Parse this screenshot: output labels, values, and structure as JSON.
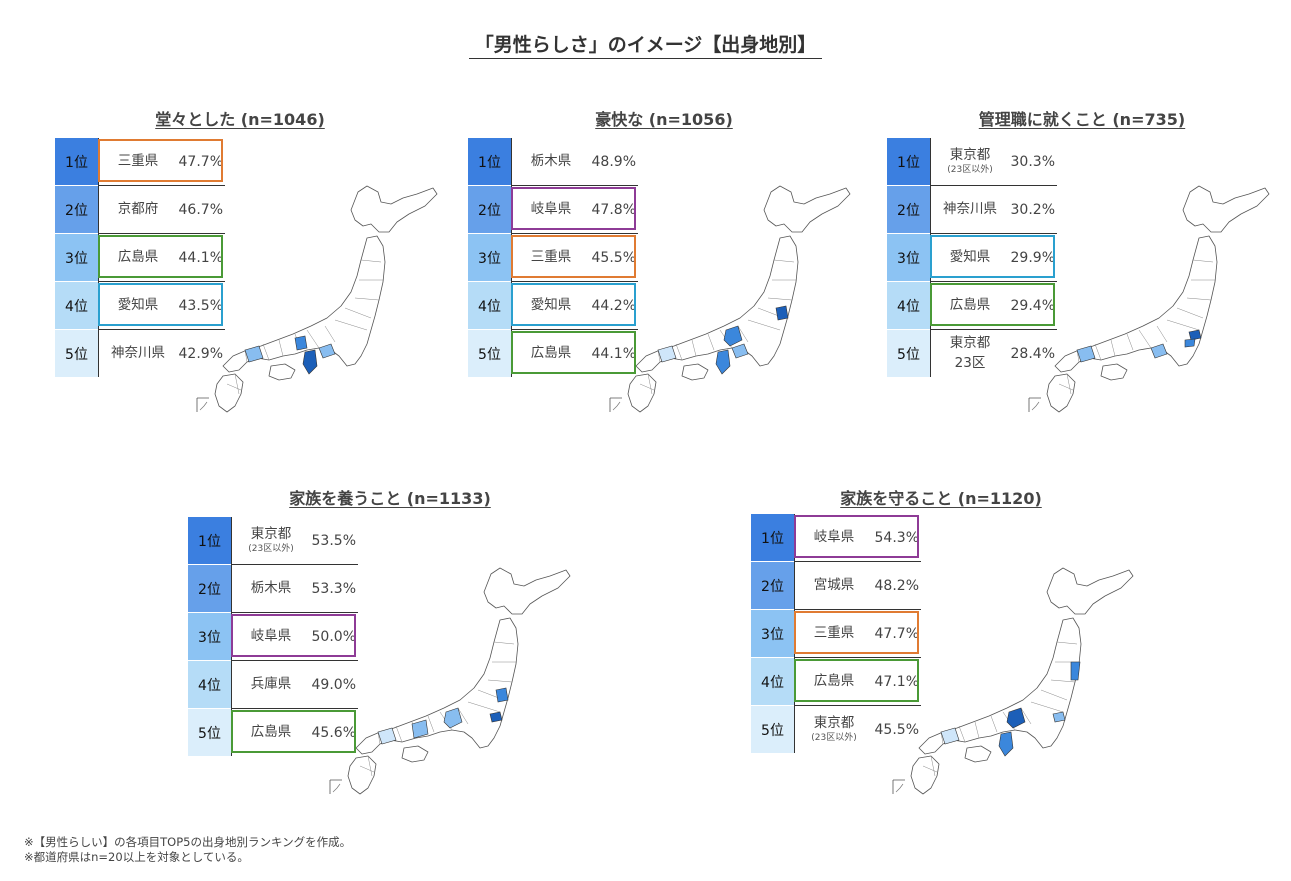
{
  "title": "「男性らしさ」のイメージ【出身地別】",
  "colors": {
    "rank1": "#3b7fe0",
    "rank2": "#66a0ea",
    "rank3": "#8cc3f3",
    "rank4": "#b5dcf7",
    "rank5": "#dbeefb",
    "orange": "#e07b32",
    "purple": "#8e3b96",
    "blue": "#2aa0cf",
    "green": "#4a9a36",
    "map_dark": "#1c5fb8",
    "map_mid": "#3b87dc",
    "map_light": "#88bdf0",
    "map_pale": "#cfe6fa"
  },
  "chart_data": [
    {
      "type": "table",
      "title": "堂々とした (n=1046)",
      "rows": [
        {
          "rank": "1位",
          "pref": "三重県",
          "sub": "",
          "value": "47.7%",
          "highlight": "orange"
        },
        {
          "rank": "2位",
          "pref": "京都府",
          "sub": "",
          "value": "46.7%",
          "highlight": ""
        },
        {
          "rank": "3位",
          "pref": "広島県",
          "sub": "",
          "value": "44.1%",
          "highlight": "green"
        },
        {
          "rank": "4位",
          "pref": "愛知県",
          "sub": "",
          "value": "43.5%",
          "highlight": "blue"
        },
        {
          "rank": "5位",
          "pref": "神奈川県",
          "sub": "",
          "value": "42.9%",
          "highlight": ""
        }
      ]
    },
    {
      "type": "table",
      "title": "豪快な (n=1056)",
      "rows": [
        {
          "rank": "1位",
          "pref": "栃木県",
          "sub": "",
          "value": "48.9%",
          "highlight": ""
        },
        {
          "rank": "2位",
          "pref": "岐阜県",
          "sub": "",
          "value": "47.8%",
          "highlight": "purple"
        },
        {
          "rank": "3位",
          "pref": "三重県",
          "sub": "",
          "value": "45.5%",
          "highlight": "orange"
        },
        {
          "rank": "4位",
          "pref": "愛知県",
          "sub": "",
          "value": "44.2%",
          "highlight": "blue"
        },
        {
          "rank": "5位",
          "pref": "広島県",
          "sub": "",
          "value": "44.1%",
          "highlight": "green"
        }
      ]
    },
    {
      "type": "table",
      "title": "管理職に就くこと (n=735)",
      "rows": [
        {
          "rank": "1位",
          "pref": "東京都",
          "sub": "(23区以外)",
          "value": "30.3%",
          "highlight": ""
        },
        {
          "rank": "2位",
          "pref": "神奈川県",
          "sub": "",
          "value": "30.2%",
          "highlight": ""
        },
        {
          "rank": "3位",
          "pref": "愛知県",
          "sub": "",
          "value": "29.9%",
          "highlight": "blue"
        },
        {
          "rank": "4位",
          "pref": "広島県",
          "sub": "",
          "value": "29.4%",
          "highlight": "green"
        },
        {
          "rank": "5位",
          "pref": "東京都",
          "sub": "23区",
          "value": "28.4%",
          "highlight": ""
        }
      ]
    },
    {
      "type": "table",
      "title": "家族を養うこと (n=1133)",
      "rows": [
        {
          "rank": "1位",
          "pref": "東京都",
          "sub": "(23区以外)",
          "value": "53.5%",
          "highlight": ""
        },
        {
          "rank": "2位",
          "pref": "栃木県",
          "sub": "",
          "value": "53.3%",
          "highlight": ""
        },
        {
          "rank": "3位",
          "pref": "岐阜県",
          "sub": "",
          "value": "50.0%",
          "highlight": "purple"
        },
        {
          "rank": "4位",
          "pref": "兵庫県",
          "sub": "",
          "value": "49.0%",
          "highlight": ""
        },
        {
          "rank": "5位",
          "pref": "広島県",
          "sub": "",
          "value": "45.6%",
          "highlight": "green"
        }
      ]
    },
    {
      "type": "table",
      "title": "家族を守ること (n=1120)",
      "rows": [
        {
          "rank": "1位",
          "pref": "岐阜県",
          "sub": "",
          "value": "54.3%",
          "highlight": "purple"
        },
        {
          "rank": "2位",
          "pref": "宮城県",
          "sub": "",
          "value": "48.2%",
          "highlight": ""
        },
        {
          "rank": "3位",
          "pref": "三重県",
          "sub": "",
          "value": "47.7%",
          "highlight": "orange"
        },
        {
          "rank": "4位",
          "pref": "広島県",
          "sub": "",
          "value": "47.1%",
          "highlight": "green"
        },
        {
          "rank": "5位",
          "pref": "東京都",
          "sub": "(23区以外)",
          "value": "45.5%",
          "highlight": ""
        }
      ]
    }
  ],
  "footnotes": [
    "※【男性らしい】の各項目TOP5の出身地別ランキングを作成。",
    "※都道府県はn=20以上を対象としている。"
  ]
}
